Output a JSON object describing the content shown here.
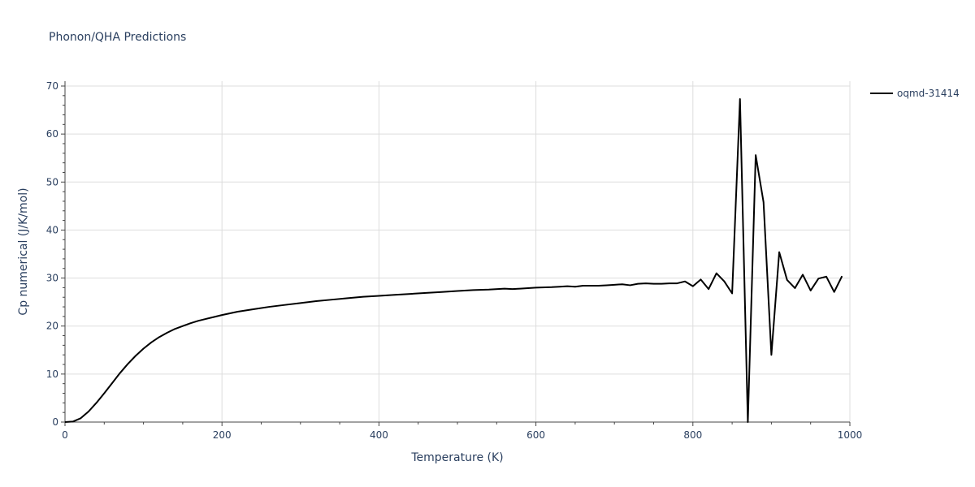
{
  "chart_data": {
    "type": "line",
    "title": "Phonon/QHA Predictions",
    "xlabel": "Temperature (K)",
    "ylabel": "Cp numerical (J/K/mol)",
    "xlim": [
      0,
      1000
    ],
    "ylim": [
      0,
      70
    ],
    "xticks": [
      0,
      200,
      400,
      600,
      800,
      1000
    ],
    "yticks": [
      0,
      10,
      20,
      30,
      40,
      50,
      60,
      70
    ],
    "grid": true,
    "legend_position": "top-right",
    "series": [
      {
        "name": "oqmd-31414",
        "color": "#000000",
        "x": [
          0,
          10,
          20,
          30,
          40,
          50,
          60,
          70,
          80,
          90,
          100,
          110,
          120,
          130,
          140,
          150,
          160,
          170,
          180,
          190,
          200,
          220,
          240,
          260,
          280,
          300,
          320,
          340,
          360,
          380,
          400,
          420,
          440,
          460,
          480,
          500,
          520,
          540,
          560,
          570,
          580,
          600,
          620,
          630,
          640,
          650,
          660,
          670,
          680,
          690,
          700,
          710,
          720,
          730,
          740,
          750,
          760,
          770,
          780,
          790,
          800,
          810,
          820,
          830,
          840,
          850,
          860,
          870,
          880,
          890,
          900,
          910,
          920,
          930,
          940,
          950,
          960,
          970,
          980,
          990
        ],
        "y": [
          0,
          0.1,
          0.8,
          2.2,
          4.0,
          6.0,
          8.1,
          10.2,
          12.1,
          13.8,
          15.3,
          16.6,
          17.7,
          18.6,
          19.4,
          20.0,
          20.6,
          21.1,
          21.5,
          21.9,
          22.3,
          23.0,
          23.5,
          24.0,
          24.4,
          24.8,
          25.2,
          25.5,
          25.8,
          26.1,
          26.3,
          26.5,
          26.7,
          26.9,
          27.1,
          27.3,
          27.5,
          27.6,
          27.8,
          27.7,
          27.8,
          28.0,
          28.1,
          28.2,
          28.3,
          28.2,
          28.4,
          28.4,
          28.4,
          28.5,
          28.6,
          28.7,
          28.5,
          28.8,
          28.9,
          28.8,
          28.8,
          28.9,
          28.9,
          29.3,
          28.3,
          29.7,
          27.7,
          31.0,
          29.3,
          26.8,
          67.3,
          0,
          55.6,
          45.8,
          14.0,
          35.4,
          29.6,
          27.9,
          30.7,
          27.4,
          29.9,
          30.3,
          27.1,
          30.4
        ]
      }
    ]
  }
}
